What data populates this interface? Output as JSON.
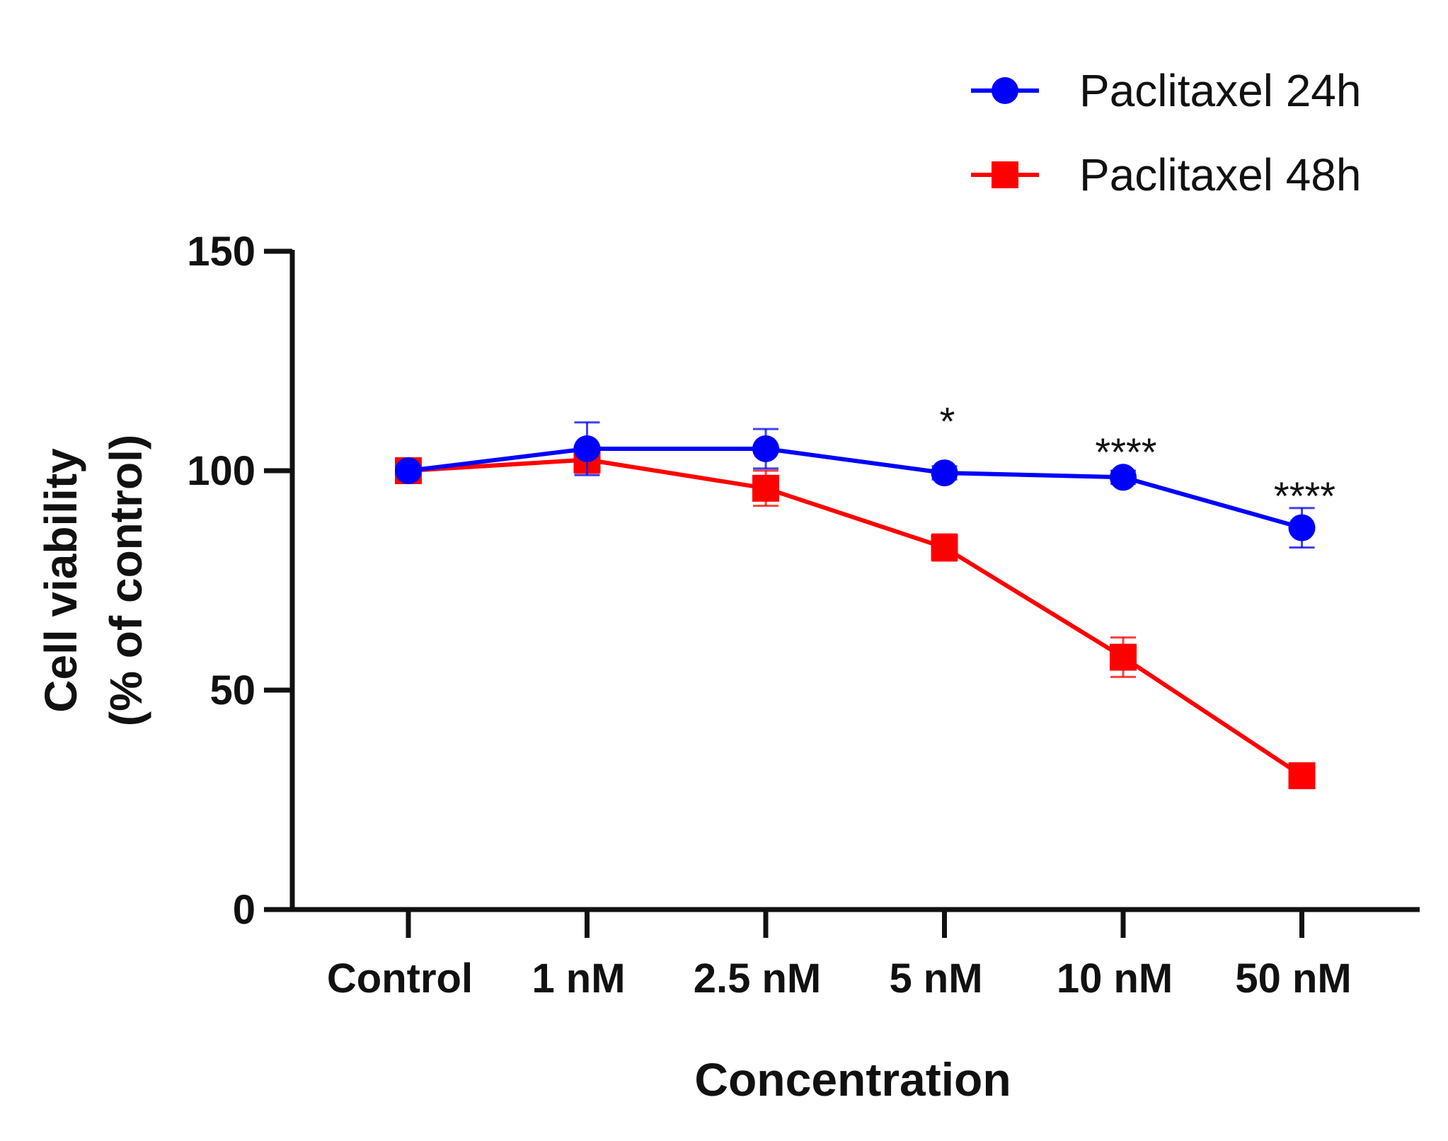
{
  "chart_data": {
    "type": "line",
    "title": "",
    "xlabel": "Concentration",
    "ylabel_line1": "Cell viability",
    "ylabel_line2": "(% of control)",
    "categories": [
      "Control",
      "1 nM",
      "2.5 nM",
      "5 nM",
      "10 nM",
      "50 nM"
    ],
    "ylim": [
      0,
      150
    ],
    "yticks": [
      0,
      50,
      100,
      150
    ],
    "legend_position": "top-right",
    "series": [
      {
        "name": "Paclitaxel 24h",
        "color": "#0000ff",
        "marker": "circle",
        "values": [
          100,
          105,
          105,
          99.5,
          98.5,
          87
        ],
        "errors": [
          1,
          6,
          4.5,
          1.5,
          1.5,
          4.5
        ]
      },
      {
        "name": "Paclitaxel 48h",
        "color": "#ff0000",
        "marker": "square",
        "values": [
          100,
          102.5,
          96,
          82.5,
          57.5,
          30.5
        ],
        "errors": [
          1.5,
          3,
          4,
          3,
          4.5,
          1.5
        ]
      }
    ],
    "annotations": [
      {
        "category_index": 3,
        "text": "*",
        "y_value": 113
      },
      {
        "category_index": 4,
        "text": "****",
        "y_value": 106
      },
      {
        "category_index": 5,
        "text": "****",
        "y_value": 96
      }
    ]
  }
}
